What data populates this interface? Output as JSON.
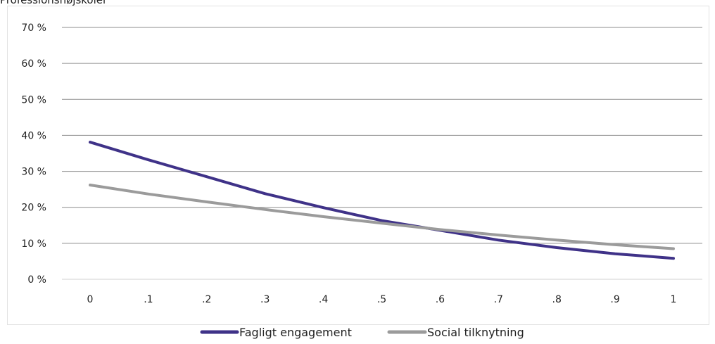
{
  "page_header_fragment": "Professionshøjskoler",
  "chart_data": {
    "type": "line",
    "x": [
      0,
      0.1,
      0.2,
      0.3,
      0.4,
      0.5,
      0.6,
      0.7,
      0.8,
      0.9,
      1
    ],
    "x_tick_labels": [
      "0",
      ".1",
      ".2",
      ".3",
      ".4",
      ".5",
      ".6",
      ".7",
      ".8",
      ".9",
      "1"
    ],
    "y_tick_labels": [
      "0 %",
      "10 %",
      "20 %",
      "30 %",
      "40 %",
      "50 %",
      "60 %",
      "70 %"
    ],
    "y_ticks": [
      0,
      10,
      20,
      30,
      40,
      50,
      60,
      70
    ],
    "ylim": [
      0,
      70
    ],
    "xlim": [
      0,
      1
    ],
    "grid": "horizontal",
    "legend_position": "bottom",
    "series": [
      {
        "name": "Fagligt engagement",
        "color": "#3f3288",
        "values": [
          38.1,
          33.2,
          28.5,
          23.8,
          19.9,
          16.3,
          13.6,
          10.9,
          8.8,
          7.1,
          5.8
        ]
      },
      {
        "name": "Social tilknytning",
        "color": "#9b9b9b",
        "values": [
          26.2,
          23.7,
          21.5,
          19.4,
          17.4,
          15.6,
          13.8,
          12.3,
          10.9,
          9.6,
          8.5
        ]
      }
    ]
  }
}
